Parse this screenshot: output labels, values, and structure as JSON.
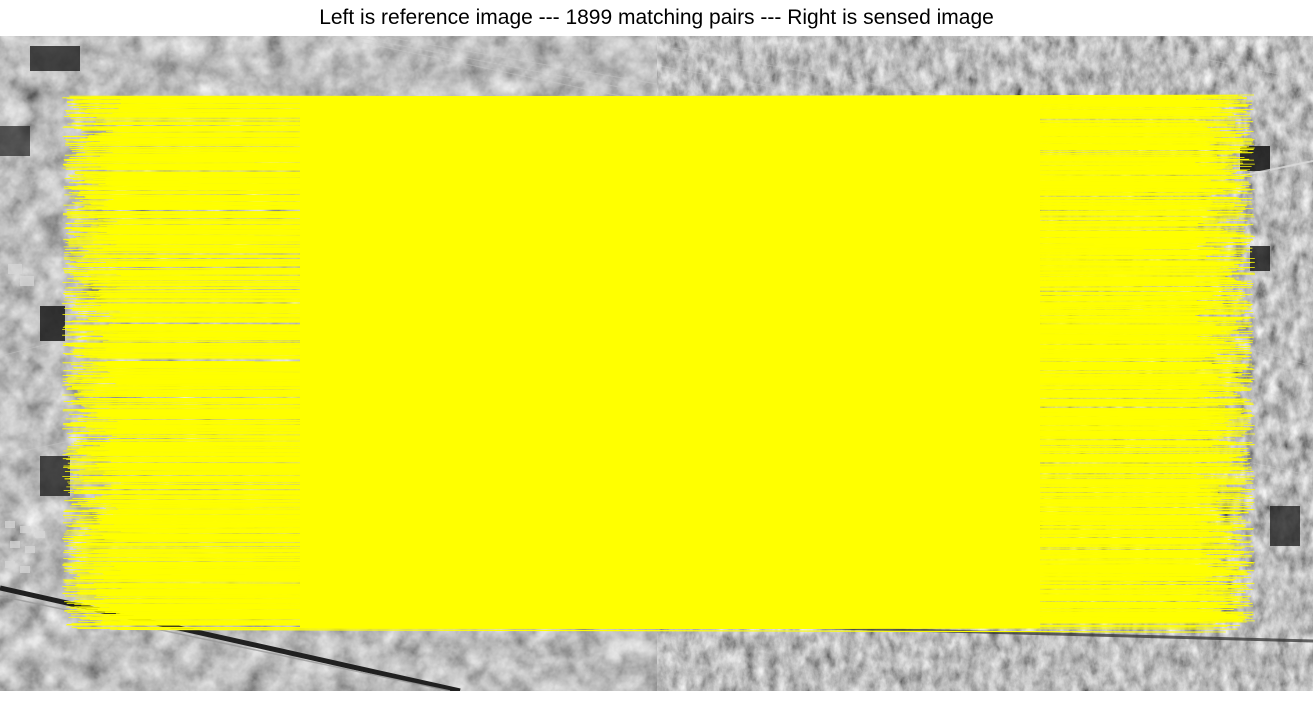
{
  "figure": {
    "title": "Left is reference image --- 1899 matching pairs --- Right is sensed image"
  },
  "panels": [
    {
      "role": "reference-image",
      "side": "left",
      "description": "grayscale aerial image of farmland, roads and a village"
    },
    {
      "role": "sensed-image",
      "side": "right",
      "description": "grayscale SAR-like aerial image of the same farmland"
    }
  ],
  "matches": {
    "count": 1899,
    "line_color": "#ffff00"
  }
}
